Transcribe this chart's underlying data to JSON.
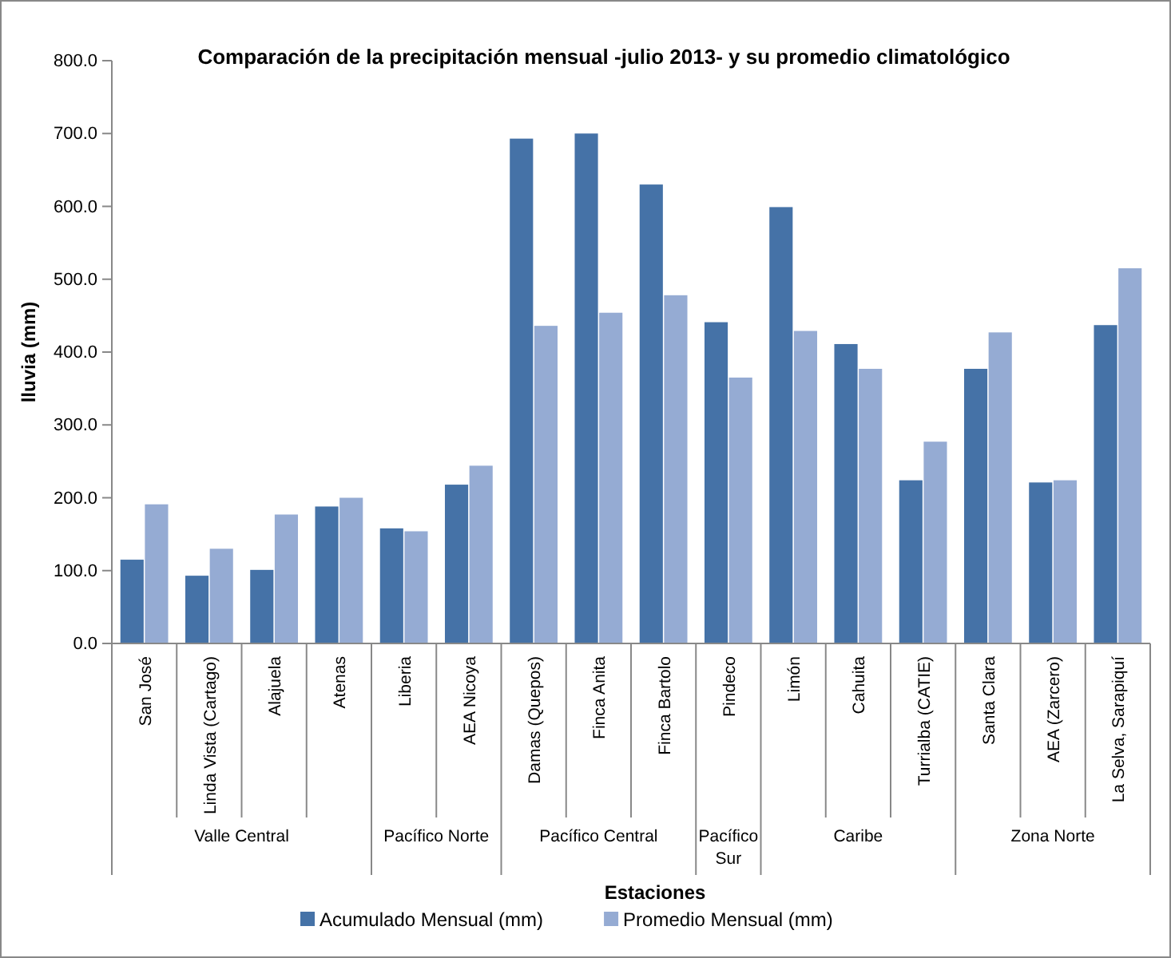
{
  "chart_data": {
    "type": "bar",
    "title": "Comparación de la precipitación mensual -julio 2013- y su promedio climatológico",
    "xlabel": "Estaciones",
    "ylabel": "lluvia (mm)",
    "categories": [
      "San José",
      "Linda Vista (Cartago)",
      "Alajuela",
      "Atenas",
      "Liberia",
      "AEA Nicoya",
      "Damas (Quepos)",
      "Finca Anita",
      "Finca Bartolo",
      "Pindeco",
      "Limón",
      "Cahuita",
      "Turrialba (CATIE)",
      "Santa Clara",
      "AEA (Zarcero)",
      "La Selva, Sarapiquí"
    ],
    "annotations": [
      "Valle Central",
      "Pacífico Norte",
      "Pacífico Central",
      "Pacífico Sur",
      "Caribe",
      "Zona Norte"
    ],
    "series": [
      {
        "name": "Acumulado Mensual (mm)",
        "color": "#4572a7",
        "values": [
          115,
          93,
          101,
          188,
          158,
          218,
          693,
          700,
          630,
          441,
          599,
          411,
          224,
          377,
          221,
          437
        ]
      },
      {
        "name": "Promedio Mensual (mm)",
        "color": "#95abd3",
        "values": [
          191,
          130,
          177,
          200,
          154,
          244,
          436,
          454,
          478,
          365,
          429,
          377,
          277,
          427,
          224,
          515
        ]
      }
    ],
    "ylim": [
      0,
      800
    ],
    "yticks": [
      {
        "value": 0,
        "label": "0.0"
      },
      {
        "value": 100,
        "label": "100.0"
      },
      {
        "value": 200,
        "label": "200.0"
      },
      {
        "value": 300,
        "label": "300.0"
      },
      {
        "value": 400,
        "label": "400.0"
      },
      {
        "value": 500,
        "label": "500.0"
      },
      {
        "value": 600,
        "label": "600.0"
      },
      {
        "value": 700,
        "label": "700.0"
      },
      {
        "value": 800,
        "label": "800.0"
      }
    ],
    "grid": false,
    "legend": "bottom"
  }
}
